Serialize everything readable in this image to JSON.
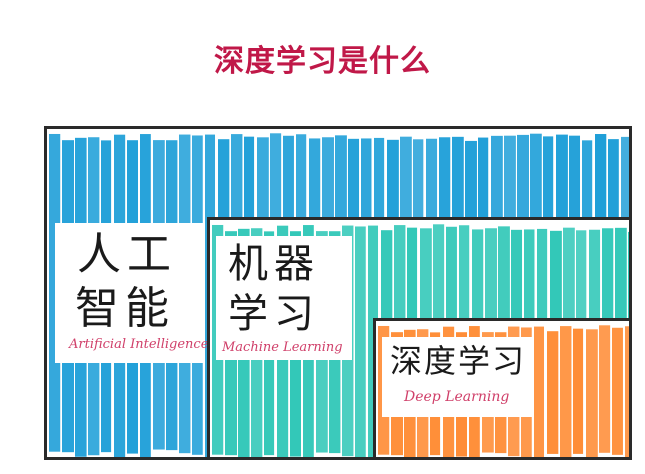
{
  "title": "深度学习是什么",
  "colors": {
    "title": "#c01848",
    "ai": "#1f9fd8",
    "ml": "#2fc7b7",
    "dl": "#ff8b33",
    "subtitle": "#d0406a"
  },
  "ai": {
    "line1": "人工",
    "line2": "智能",
    "en": "Artificial Intelligence"
  },
  "ml": {
    "line1": "机器",
    "line2": "学习",
    "en": "Machine Learning"
  },
  "dl": {
    "line1": "深度学习",
    "en": "Deep Learning"
  }
}
